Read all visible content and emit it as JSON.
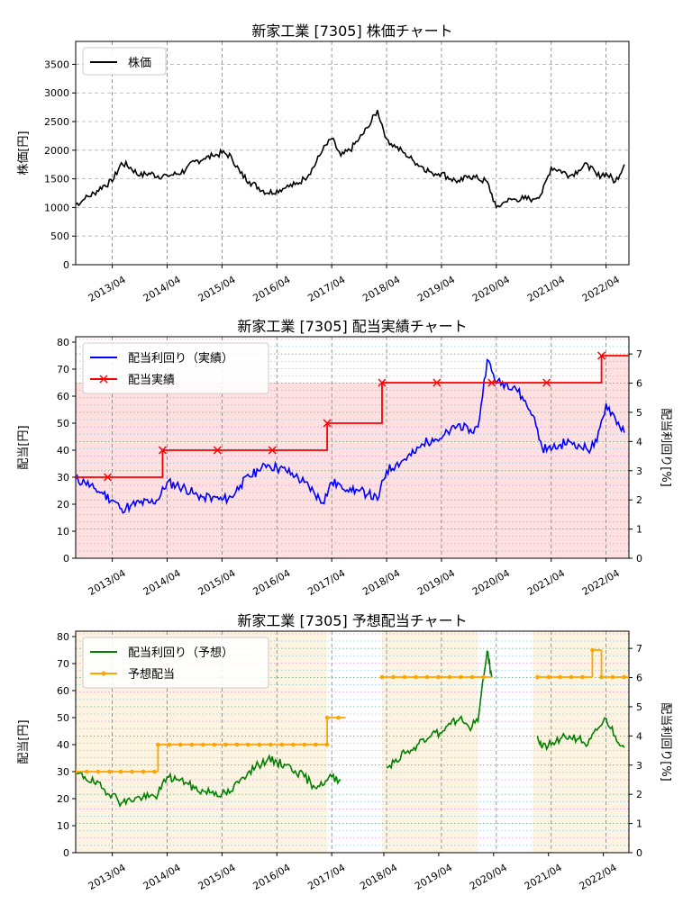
{
  "x_tick_labels": [
    "2013/04",
    "2014/04",
    "2015/04",
    "2016/04",
    "2017/04",
    "2018/04",
    "2019/04",
    "2020/04",
    "2021/04",
    "2022/04"
  ],
  "colors": {
    "price": "#000000",
    "yield_actual": "#0000ff",
    "dividend_actual": "#ff0000",
    "yield_forecast": "#008000",
    "dividend_forecast": "#ffa500",
    "actual_fill": "#ffe0e0",
    "forecast_fill": "#fdf3e1"
  },
  "chart_data": [
    {
      "type": "line",
      "title": "新家工業 [7305]  株価チャート",
      "ylabel": "株価[円]",
      "ylim": [
        0,
        3900
      ],
      "yticks": [
        0,
        500,
        1000,
        1500,
        2000,
        2500,
        3000,
        3500
      ],
      "grid": true,
      "legend": "top-left",
      "series": [
        {
          "name": "株価",
          "x": [
            "2012-08",
            "2012-10",
            "2012-12",
            "2013-02",
            "2013-04",
            "2013-06",
            "2013-08",
            "2013-10",
            "2013-12",
            "2014-02",
            "2014-04",
            "2014-06",
            "2014-08",
            "2014-10",
            "2014-12",
            "2015-02",
            "2015-04",
            "2015-06",
            "2015-08",
            "2015-10",
            "2015-12",
            "2016-02",
            "2016-04",
            "2016-06",
            "2016-08",
            "2016-10",
            "2016-12",
            "2017-02",
            "2017-04",
            "2017-06",
            "2017-08",
            "2017-10",
            "2017-12",
            "2018-02",
            "2018-04",
            "2018-06",
            "2018-08",
            "2018-10",
            "2018-12",
            "2019-02",
            "2019-04",
            "2019-06",
            "2019-08",
            "2019-10",
            "2019-12",
            "2020-02",
            "2020-04",
            "2020-06",
            "2020-08",
            "2020-10",
            "2020-12",
            "2021-02",
            "2021-04",
            "2021-06",
            "2021-08",
            "2021-10",
            "2021-12",
            "2022-02",
            "2022-04",
            "2022-06",
            "2022-08"
          ],
          "values": [
            1050,
            1150,
            1250,
            1380,
            1450,
            1780,
            1700,
            1550,
            1600,
            1550,
            1560,
            1580,
            1650,
            1800,
            1850,
            1900,
            1950,
            1900,
            1600,
            1450,
            1350,
            1250,
            1300,
            1350,
            1400,
            1500,
            1700,
            2000,
            2200,
            1900,
            2000,
            2200,
            2400,
            2700,
            2200,
            2050,
            1950,
            1800,
            1700,
            1600,
            1600,
            1500,
            1450,
            1550,
            1500,
            1450,
            1000,
            1100,
            1150,
            1150,
            1150,
            1250,
            1700,
            1650,
            1550,
            1650,
            1750,
            1550,
            1600,
            1450,
            1750
          ]
        }
      ]
    },
    {
      "type": "line",
      "title": "新家工業 [7305]  配当実績チャート",
      "ylabel": "配当[円]",
      "y2label": "配当利回り[%]",
      "ylim": [
        0,
        82
      ],
      "yticks": [
        0,
        10,
        20,
        30,
        40,
        50,
        60,
        70,
        80
      ],
      "y2lim": [
        0,
        7.59
      ],
      "y2ticks": [
        0,
        1,
        2,
        3,
        4,
        5,
        6,
        7
      ],
      "grid": true,
      "legend": "top-left",
      "series": [
        {
          "name": "配当利回り（実績）",
          "axis": "right",
          "x": [
            "2012-08",
            "2012-10",
            "2012-12",
            "2013-02",
            "2013-04",
            "2013-06",
            "2013-08",
            "2013-10",
            "2013-12",
            "2014-02",
            "2014-04",
            "2014-06",
            "2014-08",
            "2014-10",
            "2014-12",
            "2015-02",
            "2015-04",
            "2015-06",
            "2015-08",
            "2015-10",
            "2015-12",
            "2016-02",
            "2016-04",
            "2016-06",
            "2016-08",
            "2016-10",
            "2016-12",
            "2017-02",
            "2017-04",
            "2017-06",
            "2017-08",
            "2017-10",
            "2017-12",
            "2018-02",
            "2018-04",
            "2018-06",
            "2018-08",
            "2018-10",
            "2018-12",
            "2019-02",
            "2019-04",
            "2019-06",
            "2019-08",
            "2019-10",
            "2019-12",
            "2020-02",
            "2020-04",
            "2020-06",
            "2020-08",
            "2020-10",
            "2020-12",
            "2021-02",
            "2021-04",
            "2021-06",
            "2021-08",
            "2021-10",
            "2021-12",
            "2022-02",
            "2022-04",
            "2022-06",
            "2022-08"
          ],
          "values": [
            2.7,
            2.6,
            2.4,
            2.2,
            2.0,
            1.7,
            1.8,
            1.9,
            1.9,
            2.0,
            2.6,
            2.5,
            2.4,
            2.2,
            2.1,
            2.1,
            2.0,
            2.1,
            2.5,
            2.8,
            3.0,
            3.2,
            3.1,
            3.0,
            2.8,
            2.6,
            2.3,
            1.9,
            2.6,
            2.5,
            2.4,
            2.3,
            2.2,
            2.0,
            3.0,
            3.2,
            3.4,
            3.6,
            3.9,
            4.1,
            4.1,
            4.4,
            4.6,
            4.3,
            4.5,
            6.8,
            6.0,
            6.0,
            5.9,
            5.4,
            4.9,
            3.8,
            3.7,
            3.9,
            4.0,
            3.9,
            3.7,
            4.0,
            5.3,
            4.8,
            4.3
          ]
        },
        {
          "name": "配当実績",
          "axis": "left",
          "markers": {
            "x": [
              "2013-03",
              "2014-03",
              "2015-03",
              "2016-03",
              "2017-03",
              "2018-03",
              "2019-03",
              "2020-03",
              "2021-03",
              "2022-03"
            ],
            "values": [
              30,
              40,
              40,
              40,
              50,
              65,
              65,
              65,
              65,
              75
            ]
          },
          "steps": {
            "x": [
              "2012-08",
              "2014-03",
              "2017-03",
              "2018-03",
              "2022-03",
              "2022-09"
            ],
            "values": [
              30,
              40,
              50,
              65,
              75,
              75
            ]
          }
        }
      ]
    },
    {
      "type": "line",
      "title": "新家工業 [7305]  予想配当チャート",
      "ylabel": "配当[円]",
      "y2label": "配当利回り[%]",
      "ylim": [
        0,
        82
      ],
      "yticks": [
        0,
        10,
        20,
        30,
        40,
        50,
        60,
        70,
        80
      ],
      "y2lim": [
        0,
        7.59
      ],
      "y2ticks": [
        0,
        1,
        2,
        3,
        4,
        5,
        6,
        7
      ],
      "grid": true,
      "legend": "top-left",
      "series": [
        {
          "name": "配当利回り（予想）",
          "axis": "right",
          "segments": [
            {
              "x": [
                "2012-08",
                "2012-10",
                "2012-12",
                "2013-02",
                "2013-04",
                "2013-06",
                "2013-08",
                "2013-10",
                "2013-12",
                "2014-02",
                "2014-04",
                "2014-06",
                "2014-08",
                "2014-10",
                "2014-12",
                "2015-02",
                "2015-04",
                "2015-06",
                "2015-08",
                "2015-10",
                "2015-12",
                "2016-02",
                "2016-04",
                "2016-06",
                "2016-08",
                "2016-10",
                "2016-12",
                "2017-02",
                "2017-04",
                "2017-06"
              ],
              "values": [
                2.7,
                2.6,
                2.4,
                2.2,
                2.0,
                1.7,
                1.8,
                1.9,
                1.9,
                2.0,
                2.6,
                2.5,
                2.4,
                2.2,
                2.1,
                2.1,
                2.0,
                2.1,
                2.5,
                2.8,
                3.0,
                3.2,
                3.1,
                3.0,
                2.8,
                2.6,
                2.3,
                2.3,
                2.6,
                2.5
              ]
            },
            {
              "x": [
                "2018-04",
                "2018-06",
                "2018-08",
                "2018-10",
                "2018-12",
                "2019-02",
                "2019-04",
                "2019-06",
                "2019-08",
                "2019-10",
                "2019-12",
                "2020-02",
                "2020-03"
              ],
              "values": [
                2.9,
                3.2,
                3.4,
                3.6,
                3.9,
                4.1,
                4.1,
                4.4,
                4.6,
                4.3,
                4.5,
                6.9,
                6.0
              ]
            },
            {
              "x": [
                "2021-01",
                "2021-02",
                "2021-04",
                "2021-06",
                "2021-08",
                "2021-10",
                "2021-12",
                "2022-02",
                "2022-04",
                "2022-06",
                "2022-08"
              ],
              "values": [
                4.0,
                3.6,
                3.7,
                3.9,
                4.0,
                3.9,
                3.7,
                4.2,
                4.6,
                4.0,
                3.6
              ]
            }
          ]
        },
        {
          "name": "予想配当",
          "axis": "left",
          "segments": [
            {
              "x": [
                "2012-08",
                "2014-02"
              ],
              "values": [
                30,
                30
              ]
            },
            {
              "x": [
                "2014-02",
                "2017-03"
              ],
              "values": [
                40,
                40
              ]
            },
            {
              "x": [
                "2017-03",
                "2017-07"
              ],
              "values": [
                50,
                50
              ]
            },
            {
              "x": [
                "2018-03",
                "2020-03"
              ],
              "values": [
                65,
                65
              ]
            },
            {
              "x": [
                "2021-01",
                "2022-01"
              ],
              "values": [
                65,
                65
              ]
            },
            {
              "x": [
                "2022-01",
                "2022-03"
              ],
              "values": [
                75,
                75
              ]
            },
            {
              "x": [
                "2022-03",
                "2022-09"
              ],
              "values": [
                65,
                65
              ]
            }
          ],
          "shaded_ranges": [
            [
              "2012-08",
              "2017-03"
            ],
            [
              "2018-03",
              "2019-12"
            ],
            [
              "2020-12",
              "2022-09"
            ]
          ]
        }
      ]
    }
  ]
}
